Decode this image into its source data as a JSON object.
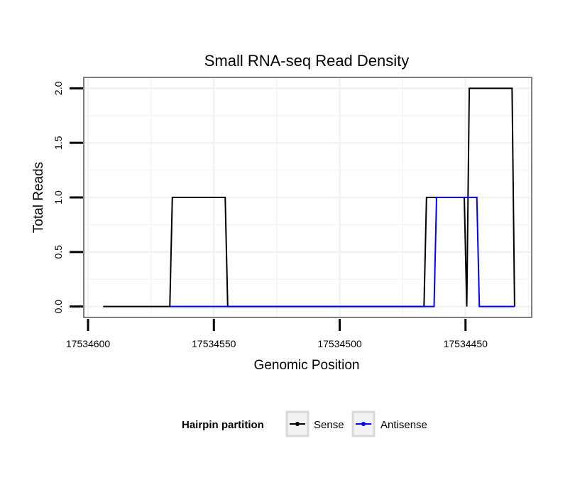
{
  "chart_data": {
    "type": "line",
    "title": "Small RNA-seq Read Density",
    "xlabel": "Genomic Position",
    "ylabel": "Total Reads",
    "x_reversed": true,
    "xlim": [
      17534601.7,
      17534423.7
    ],
    "ylim": [
      -0.1,
      2.1
    ],
    "x_ticks": [
      17534600,
      17534550,
      17534500,
      17534450
    ],
    "x_tick_labels": [
      "17534600",
      "17534550",
      "17534500",
      "17534450"
    ],
    "y_ticks": [
      0,
      0.5,
      1,
      1.5,
      2
    ],
    "y_tick_labels": [
      "0.0",
      "0.5",
      "1.0",
      "1.5",
      "2.0"
    ],
    "x_minor_gridlines": [
      17534575,
      17534525,
      17534475,
      17534425
    ],
    "y_minor_gridlines": [
      0.25,
      0.75,
      1.25,
      1.75
    ],
    "grid": true,
    "legend": {
      "title": "Hairpin partition",
      "placement": "bottom",
      "entries": [
        "Sense",
        "Antisense"
      ]
    },
    "series": [
      {
        "name": "Sense",
        "color": "#000000",
        "x": [
          17534594,
          17534567.5,
          17534566.5,
          17534545.5,
          17534544.5,
          17534466.5,
          17534465.5,
          17534450.5,
          17534449.5,
          17534448.5,
          17534431.5,
          17534430.5
        ],
        "y": [
          0,
          0,
          1,
          1,
          0,
          0,
          1,
          1,
          0,
          2,
          2,
          0
        ]
      },
      {
        "name": "Antisense",
        "color": "#0000ff",
        "x": [
          17534567.5,
          17534544.5,
          17534462.5,
          17534461.5,
          17534445.5,
          17534444.5,
          17534430.5
        ],
        "y": [
          0,
          0,
          0,
          1,
          1,
          0,
          0
        ]
      }
    ]
  }
}
